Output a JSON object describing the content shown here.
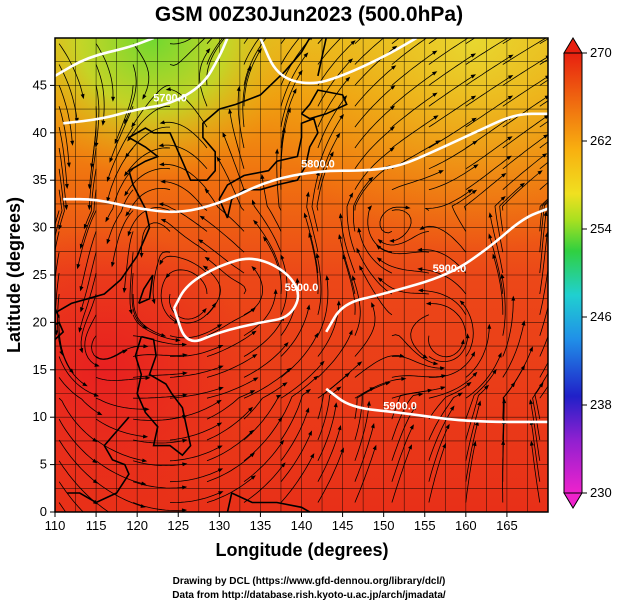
{
  "chart_data": {
    "type": "heatmap",
    "title": "GSM 00Z30Jun2023 (500.0hPa)",
    "xlabel": "Longitude (degrees)",
    "ylabel": "Latitude  (degrees)",
    "xlim": [
      110,
      170
    ],
    "ylim": [
      0,
      50
    ],
    "xticks": [
      "110",
      "115",
      "120",
      "125",
      "130",
      "135",
      "140",
      "145",
      "150",
      "155",
      "160",
      "165"
    ],
    "yticks": [
      "0",
      "5",
      "10",
      "15",
      "20",
      "25",
      "30",
      "35",
      "40",
      "45"
    ],
    "grid": true,
    "colorbar": {
      "range": [
        230,
        270
      ],
      "ticks": [
        "270",
        "262",
        "254",
        "246",
        "238",
        "230"
      ],
      "colors": [
        "#ee22cc",
        "#2020c8",
        "#2090e8",
        "#20d0d0",
        "#30d040",
        "#a8e020",
        "#f0e020",
        "#f8b010",
        "#f07010",
        "#e82010"
      ],
      "placement": "right"
    },
    "contours": [
      {
        "label": "5900.0",
        "points": [
          [
            124.5,
            21.5
          ],
          [
            126,
            24
          ],
          [
            130,
            26
          ],
          [
            134,
            27
          ],
          [
            138,
            25.5
          ],
          [
            140,
            23
          ],
          [
            138.5,
            20.5
          ],
          [
            135,
            20
          ],
          [
            130,
            19
          ],
          [
            126,
            17.5
          ],
          [
            124.5,
            21.5
          ]
        ]
      },
      {
        "label": "5900.0",
        "points": [
          [
            143,
            13
          ],
          [
            146,
            11
          ],
          [
            152,
            10.5
          ],
          [
            160,
            9.5
          ],
          [
            170,
            9.5
          ]
        ]
      },
      {
        "label": "5900.0",
        "points": [
          [
            143,
            19
          ],
          [
            145,
            22
          ],
          [
            150,
            23
          ],
          [
            158,
            25
          ],
          [
            163,
            28
          ],
          [
            167,
            31
          ],
          [
            170,
            32
          ]
        ]
      },
      {
        "label": "5800.0",
        "points": [
          [
            111,
            33
          ],
          [
            115,
            33
          ],
          [
            120,
            32
          ],
          [
            125,
            31.5
          ],
          [
            130,
            32.5
          ],
          [
            136,
            35
          ],
          [
            142,
            36
          ],
          [
            148,
            36
          ],
          [
            152,
            36.5
          ],
          [
            156,
            38
          ],
          [
            161,
            40
          ],
          [
            166,
            42
          ],
          [
            170,
            42
          ]
        ]
      },
      {
        "label": "",
        "points": [
          [
            110,
            46
          ],
          [
            114,
            48
          ],
          [
            119,
            49
          ],
          [
            122,
            50
          ]
        ]
      },
      {
        "label": "5700.0",
        "points": [
          [
            111,
            41
          ],
          [
            116,
            41.5
          ],
          [
            120,
            42.5
          ],
          [
            124,
            43
          ],
          [
            128,
            45
          ],
          [
            130,
            48
          ],
          [
            131,
            50
          ]
        ]
      },
      {
        "label": "",
        "points": [
          [
            135,
            50
          ],
          [
            137,
            46
          ],
          [
            141,
            45
          ],
          [
            145,
            46
          ],
          [
            150,
            48
          ],
          [
            154,
            50
          ]
        ]
      }
    ]
  },
  "credits": {
    "line1": "Drawing by DCL (https://www.gfd-dennou.org/library/dcl/)",
    "line2": "Data from http://database.rish.kyoto-u.ac.jp/arch/jmadata/"
  }
}
